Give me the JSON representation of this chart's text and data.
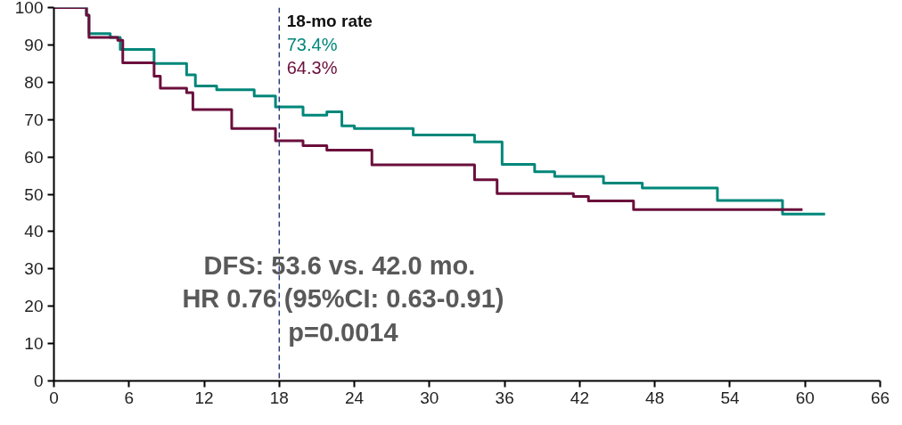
{
  "chart_data": {
    "type": "step",
    "xlim": [
      0,
      66
    ],
    "ylim": [
      0,
      100
    ],
    "xticks": [
      0,
      6,
      12,
      18,
      24,
      30,
      36,
      42,
      48,
      54,
      60,
      66
    ],
    "yticks": [
      0,
      10,
      20,
      30,
      40,
      50,
      60,
      70,
      80,
      90,
      100
    ],
    "grid": false,
    "series": [
      {
        "color": "#00877a",
        "x": [
          0,
          2.6,
          2.8,
          4.5,
          5.3,
          8,
          10.6,
          11.3,
          13,
          16,
          17.7,
          19.9,
          21.8,
          23,
          24,
          27.7,
          28.7,
          33.6,
          35.8,
          38.4,
          40,
          43.9,
          47,
          53,
          58.2,
          61.6
        ],
        "values": [
          100,
          98,
          93,
          92,
          88.8,
          85,
          82,
          79,
          78,
          76.3,
          73.4,
          71.2,
          72.1,
          68.3,
          67.6,
          67.6,
          65.9,
          64,
          58,
          56,
          54.8,
          53,
          51.7,
          48.3,
          44.7,
          44.7
        ]
      },
      {
        "color": "#6b0f3c",
        "x": [
          0,
          2.6,
          2.8,
          5.1,
          5.5,
          8,
          8.5,
          10.6,
          11.1,
          14.2,
          16.1,
          17.7,
          19.9,
          21.8,
          25.4,
          33.6,
          35.4,
          38.4,
          41.5,
          42.7,
          46.3,
          59.8
        ],
        "values": [
          100,
          98,
          92,
          91.2,
          85.2,
          81.6,
          78.4,
          77.2,
          72.7,
          67.6,
          67.6,
          64.3,
          63,
          61.8,
          57.9,
          53.9,
          50.2,
          50.2,
          49.4,
          48.2,
          45.9,
          45.9
        ]
      }
    ],
    "ref_lines": [
      {
        "axis": "x",
        "value": 18,
        "color": "#2b3a78",
        "line_style": "dashed"
      }
    ],
    "annotations": [
      "18-mo rate",
      "73.4%",
      "64.3%",
      "DFS: 53.6  vs. 42.0 mo.",
      "HR 0.76 (95%CI: 0.63-0.91)",
      "p=0.0014"
    ]
  }
}
